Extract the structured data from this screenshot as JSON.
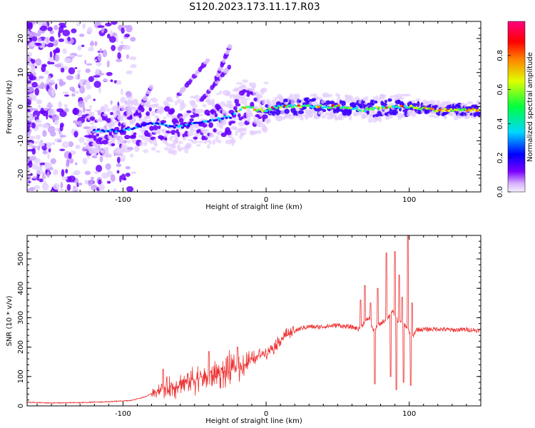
{
  "title": "S120.2023.173.11.17.R03",
  "chart_data": [
    {
      "type": "heatmap",
      "xlabel": "Height of straight line (km)",
      "ylabel": "Frequency (Hz)",
      "xlim": [
        -167,
        150
      ],
      "ylim": [
        -25,
        25
      ],
      "x_ticks": [
        -100,
        0,
        100
      ],
      "y_ticks": [
        -20,
        -10,
        0,
        10,
        20
      ],
      "colorbar": {
        "label": "Normalized spectral amplitude",
        "range": [
          0,
          1
        ],
        "ticks": [
          "0.0",
          "0.2",
          "0.4",
          "0.6",
          "0.8"
        ],
        "colors": [
          "#f4f0ff",
          "#d8b0ff",
          "#7a00ff",
          "#0000ff",
          "#00d8ff",
          "#00ff40",
          "#e0ff00",
          "#ff8000",
          "#ff0000",
          "#ff0080"
        ]
      },
      "ridge": {
        "x": [
          -125,
          -100,
          -80,
          -60,
          -40,
          -25,
          -15,
          -5,
          0,
          10,
          30,
          50,
          70,
          85,
          95,
          100,
          120,
          150
        ],
        "frequency": [
          -7,
          -7,
          -5,
          -6,
          -4,
          -3,
          0,
          -1,
          -1,
          0,
          0,
          0,
          -1,
          0,
          0,
          0,
          -1,
          -1
        ]
      }
    },
    {
      "type": "line",
      "xlabel": "Height of straight line (km)",
      "ylabel": "SNR (10 * v/v)",
      "xlim": [
        -167,
        150
      ],
      "ylim": [
        0,
        580
      ],
      "x_ticks": [
        -100,
        0,
        100
      ],
      "y_ticks": [
        0,
        100,
        200,
        300,
        400,
        500
      ],
      "color": "#ee3333",
      "series": [
        {
          "x": [
            -167,
            -150,
            -130,
            -110,
            -95,
            -85,
            -75,
            -65,
            -55,
            -45,
            -35,
            -25,
            -18,
            -12,
            -8,
            -4,
            0,
            5,
            10,
            15,
            20,
            25,
            30,
            35,
            40,
            45,
            50,
            55,
            60,
            65,
            68,
            72,
            75,
            80,
            85,
            88,
            90,
            92,
            95,
            98,
            100,
            102,
            105,
            110,
            120,
            130,
            140,
            150
          ],
          "values": [
            12,
            10,
            11,
            14,
            18,
            30,
            55,
            65,
            85,
            95,
            110,
            120,
            135,
            150,
            160,
            175,
            185,
            200,
            225,
            245,
            255,
            265,
            270,
            268,
            270,
            272,
            275,
            270,
            268,
            262,
            280,
            300,
            255,
            280,
            300,
            320,
            310,
            290,
            280,
            270,
            250,
            230,
            260,
            260,
            262,
            258,
            260,
            256
          ],
          "spike_envelope": {
            "x": [
              -80,
              -70,
              -60,
              -50,
              -40,
              -30,
              -20,
              -10,
              0,
              10,
              20
            ],
            "amplitude": [
              40,
              70,
              80,
              95,
              110,
              120,
              130,
              60,
              40,
              35,
              25
            ]
          },
          "spikes": [
            {
              "x": -72,
              "peak": 125
            },
            {
              "x": -40,
              "peak": 185
            },
            {
              "x": -20,
              "peak": 200
            },
            {
              "x": 66,
              "peak": 360
            },
            {
              "x": 69,
              "peak": 410
            },
            {
              "x": 73,
              "peak": 350
            },
            {
              "x": 76,
              "peak": 75
            },
            {
              "x": 78,
              "peak": 400
            },
            {
              "x": 84,
              "peak": 520
            },
            {
              "x": 87,
              "peak": 100
            },
            {
              "x": 90,
              "peak": 525
            },
            {
              "x": 91,
              "peak": 55
            },
            {
              "x": 93,
              "peak": 445
            },
            {
              "x": 95,
              "peak": 370
            },
            {
              "x": 96,
              "peak": 80
            },
            {
              "x": 99,
              "peak": 580
            },
            {
              "x": 101,
              "peak": 70
            },
            {
              "x": 102,
              "peak": 350
            }
          ]
        }
      ]
    }
  ]
}
